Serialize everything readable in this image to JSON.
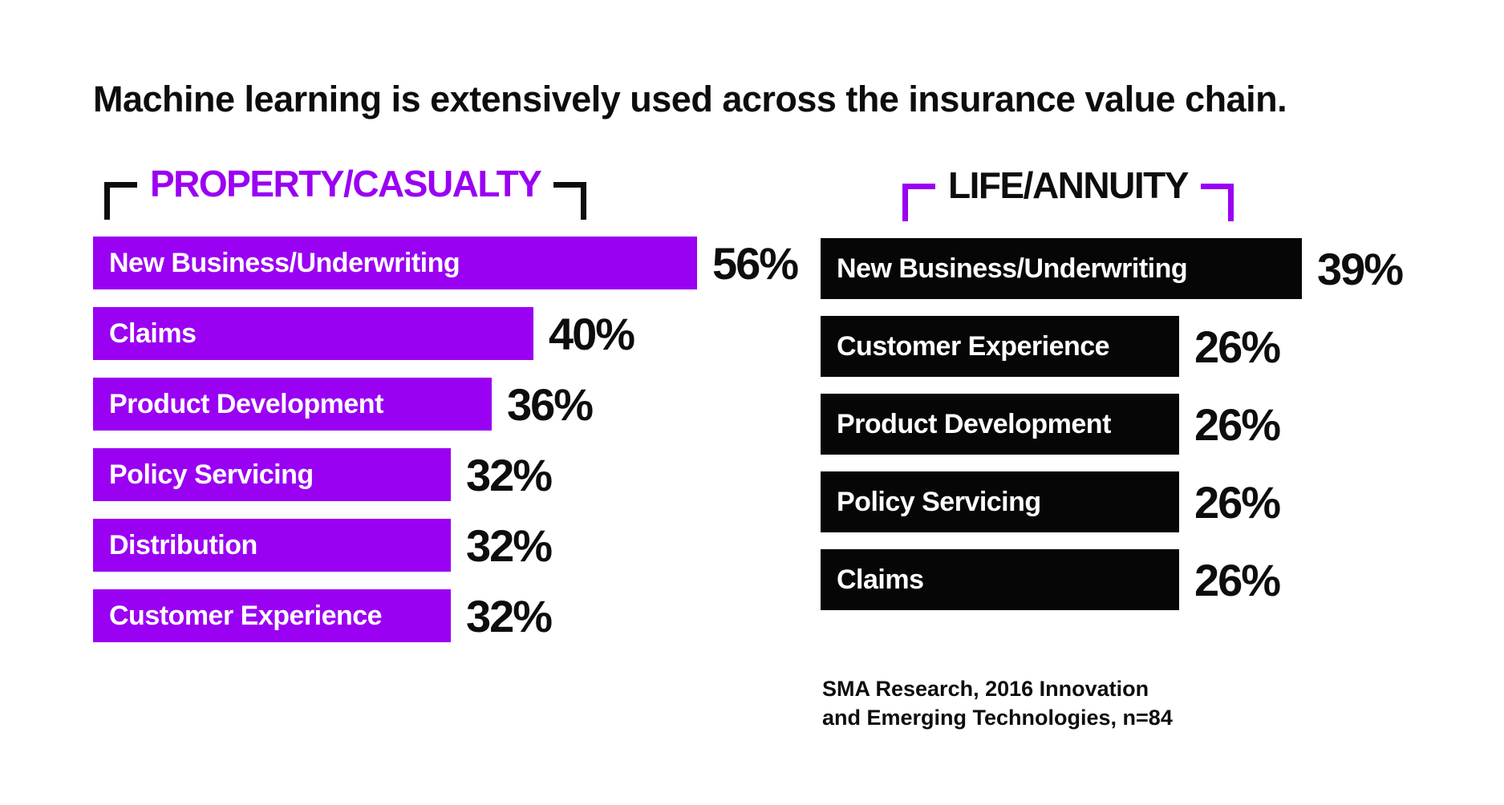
{
  "title": "Machine learning is extensively used across the insurance value chain.",
  "colors": {
    "purple": "#9A00F2",
    "bar_black": "#060606",
    "ink": "#0D0D0D",
    "bar_text": "#FFFFFF",
    "background": "#FFFFFF"
  },
  "chart_data": [
    {
      "type": "bar",
      "orientation": "horizontal",
      "title": "PROPERTY/CASUALTY",
      "categories": [
        "New Business/Underwriting",
        "Claims",
        "Product Development",
        "Policy Servicing",
        "Distribution",
        "Customer Experience"
      ],
      "values": [
        56,
        40,
        36,
        32,
        32,
        32
      ],
      "value_labels": [
        "56%",
        "40%",
        "36%",
        "32%",
        "32%",
        "32%"
      ],
      "unit": "%",
      "xlim": [
        0,
        60
      ],
      "bar_color": "#9A00F2",
      "label_position": "inside-left",
      "value_position": "right-of-bar",
      "grid": false,
      "legend": false
    },
    {
      "type": "bar",
      "orientation": "horizontal",
      "title": "LIFE/ANNUITY",
      "categories": [
        "New Business/Underwriting",
        "Customer Experience",
        "Product Development",
        "Policy Servicing",
        "Claims"
      ],
      "values": [
        39,
        26,
        26,
        26,
        26
      ],
      "value_labels": [
        "39%",
        "26%",
        "26%",
        "26%",
        "26%"
      ],
      "unit": "%",
      "xlim": [
        0,
        45
      ],
      "bar_color": "#060606",
      "label_position": "inside-left",
      "value_position": "right-of-bar",
      "grid": false,
      "legend": false
    }
  ],
  "source": {
    "line1": "SMA Research, 2016 Innovation",
    "line2": "and Emerging Technologies, n=84"
  }
}
